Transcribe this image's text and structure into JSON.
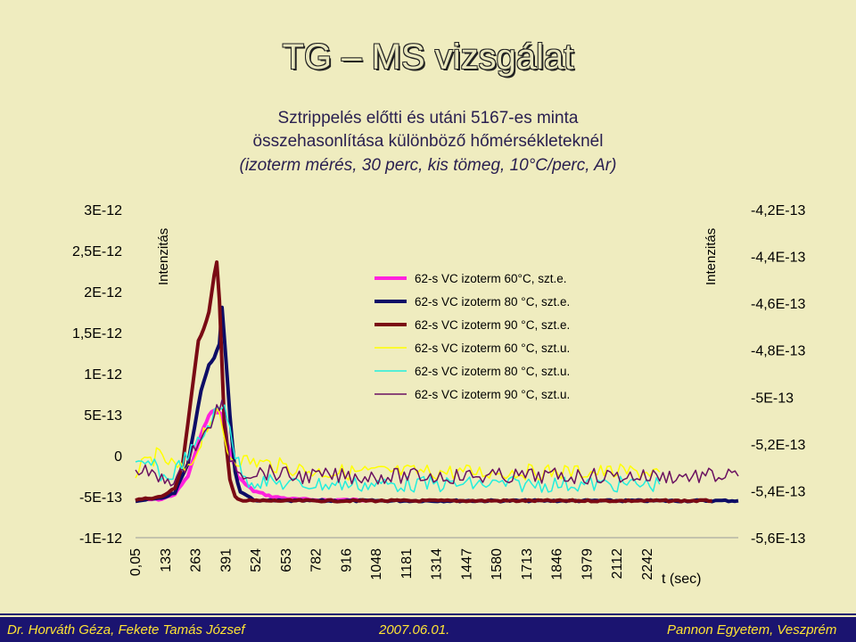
{
  "page": {
    "title": "TG – MS vizsgálat",
    "subtitle_line1": "Sztrippelés előtti és utáni 5167-es minta",
    "subtitle_line2": "összehasonlítása különböző hőmérsékleteknél",
    "subtitle_line3": "(izoterm mérés, 30 perc, kis tömeg, 10°C/perc, Ar)"
  },
  "footer": {
    "authors": "Dr. Horváth Géza, Fekete Tamás József",
    "date": "2007.06.01.",
    "institution": "Pannon Egyetem, Veszprém"
  },
  "colors": {
    "background": "#efecbf",
    "footer": "#1b1470",
    "footer_text": "#ffe433"
  },
  "chart_data": {
    "type": "line",
    "xlabel": "t (sec)",
    "ylabel_left": "Intenzitás",
    "ylabel_right": "Intenzitás",
    "x_ticks": [
      "0,05",
      "133",
      "263",
      "391",
      "524",
      "653",
      "782",
      "916",
      "1048",
      "1181",
      "1314",
      "1447",
      "1580",
      "1713",
      "1846",
      "1979",
      "2112",
      "2242"
    ],
    "y_left_ticks": [
      "3E-12",
      "2,5E-12",
      "2E-12",
      "1,5E-12",
      "1E-12",
      "5E-13",
      "0",
      "-5E-13",
      "-1E-12"
    ],
    "y_left_range": [
      -1e-12,
      3e-12
    ],
    "y_right_ticks": [
      "-4,2E-13",
      "-4,4E-13",
      "-4,6E-13",
      "-4,8E-13",
      "-5E-13",
      "-5,2E-13",
      "-5,4E-13",
      "-5,6E-13"
    ],
    "y_right_range": [
      -5.6e-13,
      -4.2e-13
    ],
    "legend_position": "top-center",
    "series": [
      {
        "name": "62-s VC izoterm 60°C, szt.e.",
        "color": "#ff22dd",
        "width": 4,
        "axis": "left",
        "x": [
          0,
          100,
          150,
          200,
          250,
          280,
          300,
          330,
          350,
          390,
          420,
          450,
          520,
          600,
          700,
          900
        ],
        "y": [
          -5.4e-13,
          -5.3e-13,
          -4.7e-13,
          -2.5e-13,
          2.5e-13,
          5e-13,
          5.5e-13,
          5e-13,
          1.5e-13,
          -2.5e-13,
          -3.5e-13,
          -4.3e-13,
          -5e-13,
          -5.3e-13,
          -5.4e-13,
          -5.4e-13
        ]
      },
      {
        "name": "62-s VC izoterm 80  °C, szt.e.",
        "color": "#0d0d66",
        "width": 4,
        "axis": "left",
        "x": [
          0,
          100,
          150,
          200,
          250,
          280,
          300,
          320,
          330,
          340,
          360,
          380,
          400,
          450,
          500,
          700,
          1200,
          1800,
          2000,
          2200,
          2300
        ],
        "y": [
          -5.5e-13,
          -5.2e-13,
          -4.5e-13,
          -1e-13,
          8e-13,
          1.1e-12,
          1.2e-12,
          1.35e-12,
          1.8e-12,
          1.4e-12,
          5e-13,
          -2e-13,
          -4.5e-13,
          -5.4e-13,
          -5.5e-13,
          -5.5e-13,
          -5.5e-13,
          -5.5e-13,
          -5.5e-13,
          -5.5e-13,
          -5.5e-13
        ]
      },
      {
        "name": "62-s VC izoterm 90  °C, szt.e.",
        "color": "#7a0a14",
        "width": 4,
        "axis": "left",
        "x": [
          0,
          100,
          150,
          180,
          200,
          220,
          240,
          260,
          280,
          300,
          310,
          320,
          330,
          340,
          360,
          380,
          410,
          450,
          600,
          1000,
          1500,
          2000,
          2200
        ],
        "y": [
          -5.4e-13,
          -5e-13,
          -4e-13,
          -1e-13,
          4e-13,
          9e-13,
          1.4e-12,
          1.55e-12,
          1.75e-12,
          2.2e-12,
          2.35e-12,
          1.9e-12,
          1.1e-12,
          3e-13,
          -3e-13,
          -5e-13,
          -5.5e-13,
          -5.5e-13,
          -5.5e-13,
          -5.5e-13,
          -5.5e-13,
          -5.5e-13,
          -5.5e-13
        ]
      },
      {
        "name": "62-s VC izoterm 60  °C, szt.u.",
        "color": "#ffff00",
        "width": 1.5,
        "axis": "left",
        "x": [
          0,
          80,
          160,
          200,
          240,
          260,
          300,
          320,
          340,
          360,
          400,
          500,
          600,
          700,
          800,
          900,
          1000,
          1100,
          1200,
          1300,
          1400,
          1500,
          1600,
          1700,
          1800,
          1900,
          2000
        ],
        "y": [
          -2e-13,
          0.0,
          -1.5e-13,
          -2e-13,
          1e-13,
          3e-13,
          5e-13,
          4.5e-13,
          2e-13,
          0.0,
          -5e-14,
          -1e-13,
          -1.5e-13,
          -2e-13,
          -2e-13,
          -2e-13,
          -2e-13,
          -2e-13,
          -2e-13,
          -2e-13,
          -2e-13,
          -2e-13,
          -2e-13,
          -2e-13,
          -2e-13,
          -2e-13,
          -2e-13
        ]
      },
      {
        "name": "62-s VC izoterm 80  °C, szt.u.",
        "color": "#22eedd",
        "width": 1.5,
        "axis": "left",
        "x": [
          0,
          60,
          120,
          200,
          250,
          300,
          340,
          360,
          380,
          420,
          500,
          600,
          700,
          800,
          900,
          1000,
          1100,
          1200,
          1300,
          1400,
          1500,
          1600,
          1700,
          1800,
          1900,
          2000
        ],
        "y": [
          -1.5e-13,
          -1e-13,
          -3e-13,
          0.0,
          2e-13,
          5e-13,
          6e-13,
          4e-13,
          0.0,
          -3e-13,
          -3.2e-13,
          -3.5e-13,
          -3.5e-13,
          -3.5e-13,
          -3.5e-13,
          -3.5e-13,
          -3.5e-13,
          -3.5e-13,
          -3.5e-13,
          -3.5e-13,
          -3.5e-13,
          -3.5e-13,
          -3.5e-13,
          -3.5e-13,
          -3.5e-13,
          -3.5e-13
        ]
      },
      {
        "name": "62-s VC izoterm 90  °C, szt.u.",
        "color": "#6a1060",
        "width": 1.5,
        "axis": "left",
        "x": [
          0,
          100,
          180,
          200,
          220,
          250,
          300,
          330,
          360,
          400,
          500,
          600,
          700,
          800,
          900,
          1000,
          1100,
          1200,
          1300,
          1400,
          1500,
          1600,
          1700,
          1800,
          1900,
          2000,
          2100,
          2200,
          2300
        ],
        "y": [
          -1.5e-13,
          -3e-13,
          -2.5e-13,
          0.0,
          1e-13,
          1.5e-13,
          5e-13,
          6.5e-13,
          0.0,
          -2e-13,
          -2e-13,
          -2.5e-13,
          -2.5e-13,
          -2.5e-13,
          -2.5e-13,
          -2.5e-13,
          -2.5e-13,
          -2.5e-13,
          -2.5e-13,
          -2.5e-13,
          -2.5e-13,
          -2.5e-13,
          -2.5e-13,
          -2.5e-13,
          -2.5e-13,
          -2.5e-13,
          -2.5e-13,
          -2.5e-13,
          -2.5e-13
        ]
      }
    ]
  }
}
